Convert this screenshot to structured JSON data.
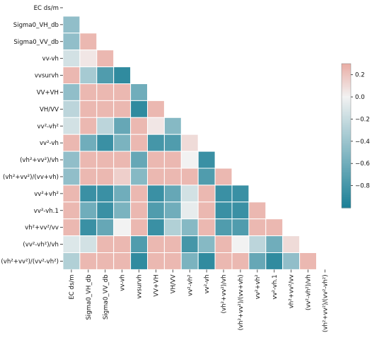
{
  "chart_data": {
    "type": "heatmap",
    "mask": "upper-triangle-including-diagonal",
    "grid": true,
    "labels": [
      "EC ds/m",
      "Sigma0_VH_db",
      "Sigma0_VV_db",
      "vv-vh",
      "vvsurvh",
      "VV+VH",
      "VH/VV",
      "vv²-vh²",
      "vv²-vh",
      "(vh²+vv²)/vh",
      "(vh²+vv²)/(vv+vh)",
      "vv²+vh²",
      "vv²-vh.1",
      "vh²+vv²/vv",
      "(vv²-vh²)/vh",
      "(vh²+vv²)/(vv²-vh²)"
    ],
    "values": [
      [],
      [
        -0.45
      ],
      [
        -0.45,
        0.25
      ],
      [
        -0.15,
        0.05,
        0.25
      ],
      [
        0.25,
        -0.35,
        -0.75,
        -0.9
      ],
      [
        -0.45,
        0.25,
        0.25,
        0.25,
        -0.6
      ],
      [
        -0.25,
        0.25,
        0.25,
        0.25,
        -0.9,
        0.25
      ],
      [
        -0.15,
        0.25,
        -0.25,
        -0.65,
        0.25,
        0.05,
        -0.5
      ],
      [
        0.25,
        -0.6,
        -0.85,
        -0.55,
        0.25,
        -0.8,
        -0.75,
        0.1
      ],
      [
        -0.45,
        0.25,
        0.25,
        0.25,
        -0.65,
        0.25,
        0.25,
        0.0,
        -0.85
      ],
      [
        -0.45,
        0.25,
        0.25,
        0.15,
        -0.5,
        0.25,
        0.25,
        0.25,
        -0.75,
        0.25
      ],
      [
        0.25,
        -0.85,
        -0.85,
        -0.6,
        0.25,
        -0.85,
        -0.65,
        -0.15,
        0.25,
        -0.85,
        -0.85
      ],
      [
        0.25,
        -0.6,
        -0.85,
        -0.55,
        0.25,
        -0.75,
        -0.6,
        -0.05,
        0.25,
        -0.85,
        -0.85,
        0.25
      ],
      [
        0.25,
        -0.85,
        -0.65,
        0.0,
        0.25,
        -0.85,
        -0.3,
        -0.5,
        0.25,
        -0.75,
        -0.75,
        0.25,
        0.25
      ],
      [
        -0.1,
        -0.15,
        0.25,
        0.25,
        -0.75,
        0.25,
        0.25,
        -0.8,
        -0.5,
        0.25,
        0.0,
        -0.25,
        -0.6,
        0.1
      ],
      [
        -0.3,
        0.25,
        0.25,
        0.25,
        -0.9,
        0.25,
        0.25,
        -0.55,
        -0.9,
        0.25,
        0.25,
        -0.65,
        -0.9,
        -0.45,
        0.25
      ]
    ],
    "vmin": -1.0,
    "vmax": 0.3,
    "colorbar": {
      "ticks": [
        0.2,
        0.0,
        -0.2,
        -0.4,
        -0.6,
        -0.8
      ],
      "tick_labels": [
        "0.2",
        "0.0",
        "−0.2",
        "−0.4",
        "−0.6",
        "−0.8"
      ]
    },
    "colors": {
      "negative": "#1a7f96",
      "center": "#f2f2f2",
      "positive": "#e9aca4"
    }
  }
}
